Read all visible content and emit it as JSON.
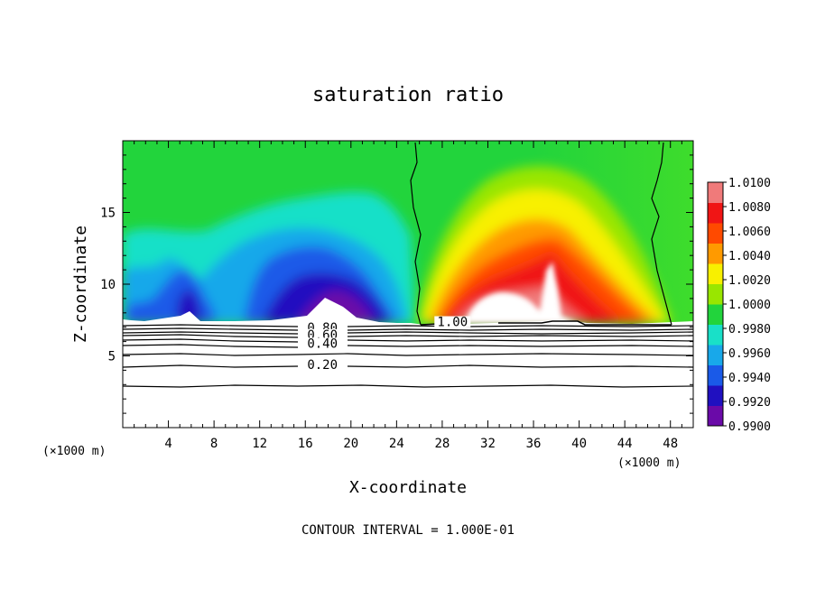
{
  "chart_data": {
    "type": "heatmap",
    "title": "saturation ratio",
    "xlabel": "X-coordinate",
    "ylabel": "Z-coordinate",
    "x_unit_label": "(×1000 m)",
    "x_unit_label_right": "(×1000 m)",
    "xlim": [
      0,
      50
    ],
    "ylim": [
      0,
      20
    ],
    "x_ticks": [
      4,
      8,
      12,
      16,
      20,
      24,
      28,
      32,
      36,
      40,
      44,
      48
    ],
    "y_ticks": [
      5,
      10,
      15
    ],
    "colorbar": {
      "min": 0.99,
      "max": 1.01,
      "tick_labels": [
        "1.0100",
        "1.0080",
        "1.0060",
        "1.0040",
        "1.0020",
        "1.0000",
        "0.9980",
        "0.9960",
        "0.9940",
        "0.9920",
        "0.9900"
      ],
      "colors": [
        "#6a0aa8",
        "#2010c0",
        "#1a5ae8",
        "#18a8ea",
        "#19e0c8",
        "#22d43c",
        "#99e600",
        "#f8f000",
        "#ff9a00",
        "#ff4a00",
        "#f01515",
        "#f07a7a"
      ]
    },
    "contour_levels_labeled": [
      {
        "label": "1.00",
        "x": 28.9,
        "y": 7.2
      },
      {
        "label": "0.80",
        "x": 17.5,
        "y": 6.8
      },
      {
        "label": "0.60",
        "x": 17.5,
        "y": 6.3
      },
      {
        "label": "0.40",
        "x": 17.5,
        "y": 5.7
      },
      {
        "label": "0.20",
        "x": 17.5,
        "y": 4.2
      }
    ],
    "contour_interval_text": "CONTOUR INTERVAL = 1.000E-01"
  }
}
